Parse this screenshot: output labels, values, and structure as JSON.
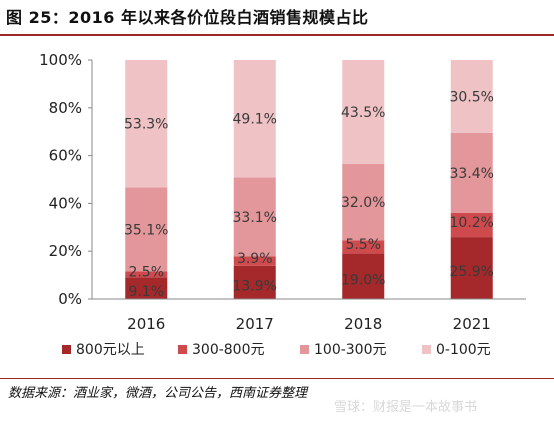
{
  "figure": {
    "title": "图 25：2016 年以来各价位段白酒销售规模占比",
    "source": "数据来源：酒业家，微酒，公司公告，西南证券整理",
    "watermark": "雪球：财报是一本故事书"
  },
  "chart_data": {
    "type": "bar",
    "stacked": true,
    "percent": true,
    "categories": [
      "2016",
      "2017",
      "2018",
      "2021"
    ],
    "series": [
      {
        "name": "800元以上",
        "color": "#a5282b",
        "values": [
          9.1,
          13.9,
          19.0,
          25.9
        ],
        "labels": [
          "9.1%",
          "13.9%",
          "19.0%",
          "25.9%"
        ]
      },
      {
        "name": "300-800元",
        "color": "#cf4a4d",
        "values": [
          2.5,
          3.9,
          5.5,
          10.2
        ],
        "labels": [
          "2.5%",
          "3.9%",
          "5.5%",
          "10.2%"
        ]
      },
      {
        "name": "100-300元",
        "color": "#e3979a",
        "values": [
          35.1,
          33.1,
          32.0,
          33.4
        ],
        "labels": [
          "35.1%",
          "33.1%",
          "32.0%",
          "33.4%"
        ]
      },
      {
        "name": "0-100元",
        "color": "#efc3c5",
        "values": [
          53.3,
          49.1,
          43.5,
          30.5
        ],
        "labels": [
          "53.3%",
          "49.1%",
          "43.5%",
          "30.5%"
        ]
      }
    ],
    "yticks": [
      "0%",
      "20%",
      "40%",
      "60%",
      "80%",
      "100%"
    ],
    "ylim": [
      0,
      100
    ],
    "grid": false,
    "legend": "bottom"
  }
}
